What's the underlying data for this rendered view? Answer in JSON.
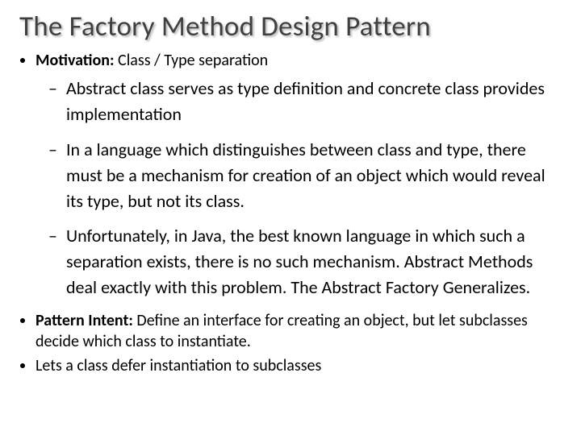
{
  "title_fontsize": 35,
  "level1_fontsize": 20,
  "level2_fontsize": 22,
  "title_color": "#404040",
  "text_color": "#000000",
  "background_color": "#ffffff",
  "title_shadow_color": "#b4b4b4",
  "title": "The Factory Method Design Pattern",
  "bullets": [
    {
      "bold": "Motivation:",
      "rest": " Class / Type separation",
      "sub": [
        "Abstract class serves as type definition and concrete class provides implementation",
        "In a language which distinguishes between class and type, there must be a  mechanism for creation of an object which would reveal its type, but not its class.",
        "Unfortunately, in Java, the best known language in which such a separation exists, there is  no such mechanism. Abstract Methods deal exactly with this problem. The Abstract Factory Generalizes."
      ]
    },
    {
      "bold": "Pattern Intent:",
      "rest": " Define an interface for creating an object, but let subclasses decide which class to instantiate.",
      "sub": []
    },
    {
      "bold": "",
      "rest": "Lets a class defer instantiation to subclasses",
      "sub": []
    }
  ]
}
